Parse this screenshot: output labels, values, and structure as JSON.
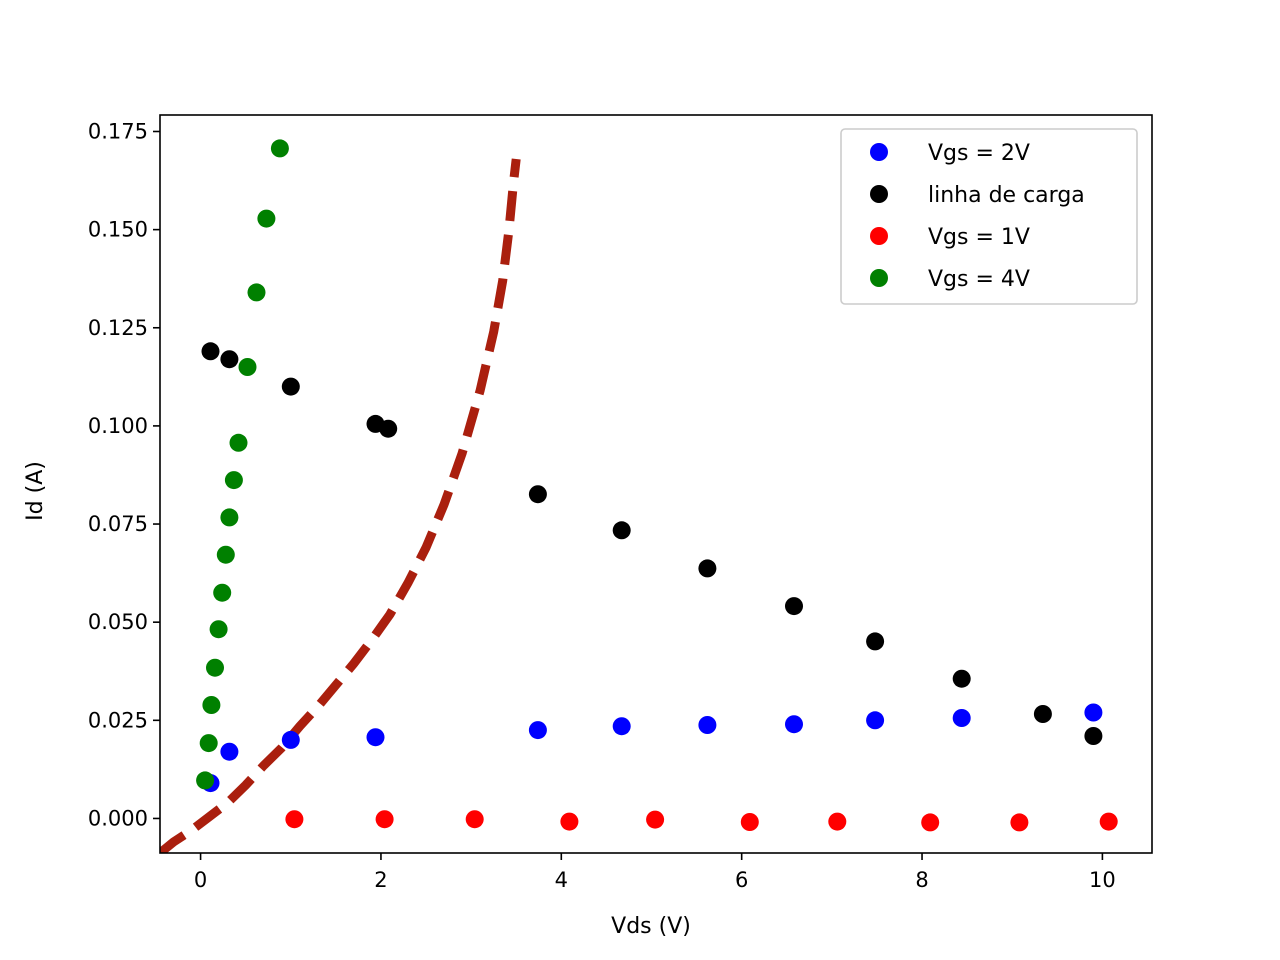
{
  "chart_data": {
    "type": "scatter",
    "title": "",
    "xlabel": "Vds (V)",
    "ylabel": "Id (A)",
    "xlim": [
      -0.45,
      10.55
    ],
    "ylim": [
      -0.0088,
      0.1792
    ],
    "xticks": [
      "0",
      "2",
      "4",
      "6",
      "8",
      "10"
    ],
    "yticks": [
      "0.000",
      "0.025",
      "0.050",
      "0.075",
      "0.100",
      "0.125",
      "0.150",
      "0.175"
    ],
    "grid": false,
    "legend_position": "top-right",
    "series": [
      {
        "name": "Vgs = 2V",
        "color": "#0000ff",
        "x": [
          0.11,
          0.32,
          1.0,
          1.94,
          3.74,
          4.67,
          5.62,
          6.58,
          7.48,
          8.44,
          9.9
        ],
        "y": [
          0.009,
          0.017,
          0.02,
          0.0207,
          0.0225,
          0.0235,
          0.0238,
          0.024,
          0.025,
          0.0256,
          0.027
        ]
      },
      {
        "name": "linha de carga",
        "color": "#000000",
        "x": [
          0.11,
          0.32,
          1.0,
          1.94,
          2.08,
          3.74,
          4.67,
          5.62,
          6.58,
          7.48,
          8.44,
          9.34,
          9.9
        ],
        "y": [
          0.119,
          0.117,
          0.11,
          0.1005,
          0.0993,
          0.0826,
          0.0734,
          0.0637,
          0.0541,
          0.0451,
          0.0356,
          0.0266,
          0.021
        ]
      },
      {
        "name": "Vgs = 1V",
        "color": "#ff0000",
        "x": [
          1.04,
          2.04,
          3.04,
          4.09,
          5.04,
          6.09,
          7.06,
          8.09,
          9.08,
          10.07
        ],
        "y": [
          -0.0002,
          -0.0002,
          -0.0002,
          -0.0008,
          -0.0003,
          -0.0009,
          -0.0008,
          -0.001,
          -0.001,
          -0.0008
        ]
      },
      {
        "name": "Vgs = 4V",
        "color": "#008000",
        "x": [
          0.05,
          0.09,
          0.12,
          0.16,
          0.2,
          0.24,
          0.28,
          0.32,
          0.37,
          0.42,
          0.52,
          0.62,
          0.73,
          0.88
        ],
        "y": [
          0.0097,
          0.0192,
          0.0289,
          0.0384,
          0.0482,
          0.0575,
          0.0672,
          0.0767,
          0.0862,
          0.0957,
          0.115,
          0.134,
          0.1528,
          0.1707
        ]
      }
    ],
    "curve": {
      "color": "#aa1f0e",
      "style": "dashed",
      "x": [
        -0.45,
        -0.3,
        -0.1,
        0.1,
        0.3,
        0.5,
        0.7,
        0.9,
        1.1,
        1.3,
        1.5,
        1.7,
        1.9,
        2.1,
        2.3,
        2.5,
        2.7,
        2.9,
        3.1,
        3.25,
        3.35,
        3.42,
        3.47,
        3.5
      ],
      "y": [
        -0.0088,
        -0.006,
        -0.003,
        0.0005,
        0.004,
        0.0085,
        0.0135,
        0.018,
        0.0235,
        0.0285,
        0.034,
        0.0395,
        0.0455,
        0.052,
        0.06,
        0.069,
        0.08,
        0.093,
        0.109,
        0.124,
        0.137,
        0.15,
        0.162,
        0.168
      ]
    }
  }
}
